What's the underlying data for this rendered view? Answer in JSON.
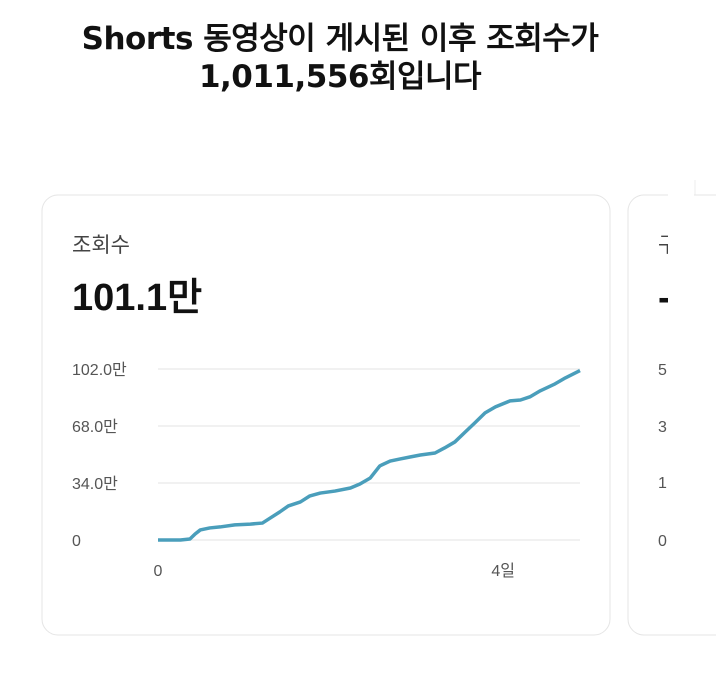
{
  "header": {
    "title_line1": "Shorts 동영상이 게시된 이후 조회수가",
    "title_line2": "1,011,556회입니다"
  },
  "cards": [
    {
      "label": "조회수",
      "value": "101.1만",
      "chart_data": {
        "type": "line",
        "color": "#4a9ebb",
        "x": [
          0,
          0.26,
          0.37,
          0.43,
          0.49,
          0.6,
          0.72,
          0.89,
          1.07,
          1.21,
          1.3,
          1.41,
          1.51,
          1.65,
          1.76,
          1.88,
          2.05,
          2.23,
          2.34,
          2.46,
          2.57,
          2.69,
          2.8,
          2.92,
          3.04,
          3.21,
          3.32,
          3.44,
          3.56,
          3.67,
          3.79,
          3.91,
          4.08,
          4.2,
          4.31,
          4.43,
          4.6,
          4.72,
          4.89
        ],
        "values": [
          0,
          0,
          0.6,
          3.6,
          6,
          7.2,
          7.8,
          9,
          9.5,
          10.1,
          13.1,
          16.7,
          20.3,
          22.7,
          26.3,
          28,
          29.2,
          31,
          33.4,
          37,
          44.2,
          47.1,
          48.3,
          49.5,
          50.7,
          51.9,
          54.9,
          58.5,
          64.4,
          69.8,
          75.8,
          79.4,
          83,
          83.5,
          85.4,
          89,
          93.1,
          96.7,
          101.1
        ],
        "xlim": [
          0,
          4.89
        ],
        "xticks": [
          0,
          {
            "value": 4,
            "label": "4일"
          }
        ],
        "ylim": [
          0,
          102
        ],
        "yticks": [
          0,
          {
            "value": 34,
            "label": "34.0만"
          },
          {
            "value": 68,
            "label": "68.0만"
          },
          {
            "value": 102,
            "label": "102.0만"
          }
        ],
        "grid": true
      }
    },
    {
      "label": "구",
      "value": "-",
      "axis_labels": [
        "5",
        "3",
        "1",
        "0"
      ]
    }
  ]
}
